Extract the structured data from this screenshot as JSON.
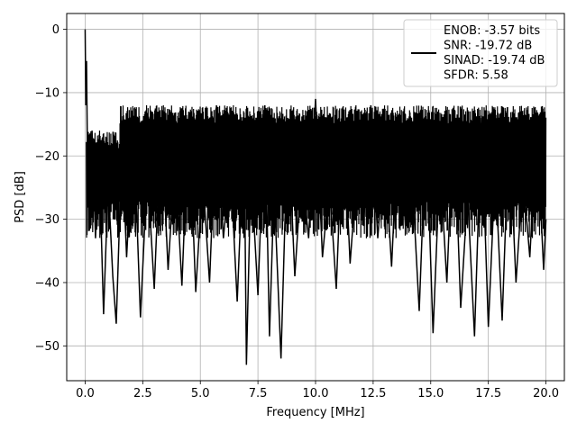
{
  "chart_data": {
    "type": "line",
    "title": "",
    "xlabel": "Frequency [MHz]",
    "ylabel": "PSD [dB]",
    "xlim": [
      -0.8,
      20.8
    ],
    "ylim": [
      -55.5,
      2.5
    ],
    "xticks": [
      0.0,
      2.5,
      5.0,
      7.5,
      10.0,
      12.5,
      15.0,
      17.5,
      20.0
    ],
    "xtick_labels": [
      "0.0",
      "2.5",
      "5.0",
      "7.5",
      "10.0",
      "12.5",
      "15.0",
      "17.5",
      "20.0"
    ],
    "yticks": [
      0,
      -10,
      -20,
      -30,
      -40,
      -50
    ],
    "ytick_labels": [
      "0",
      "−10",
      "−20",
      "−30",
      "−40",
      "−50"
    ],
    "grid": true,
    "legend_position": "top-right",
    "series": [
      {
        "name": "ENOB: -3.57 bits\nSNR: -19.72 dB\nSINAD: -19.74 dB\nSFDR: 5.58",
        "color": "#000000",
        "x": [
          0.0,
          0.03,
          0.06,
          0.1,
          0.2,
          0.3,
          0.45,
          0.6,
          0.8,
          1.0,
          1.2,
          1.35,
          1.6,
          1.8,
          2.1,
          2.4,
          2.7,
          3.0,
          3.3,
          3.6,
          3.9,
          4.2,
          4.5,
          4.8,
          5.1,
          5.4,
          5.7,
          6.0,
          6.3,
          6.6,
          6.9,
          7.0,
          7.2,
          7.5,
          7.8,
          8.0,
          8.2,
          8.5,
          8.8,
          9.1,
          9.4,
          9.7,
          10.0,
          10.3,
          10.6,
          10.9,
          11.2,
          11.5,
          11.8,
          12.1,
          12.4,
          12.7,
          13.0,
          13.3,
          13.6,
          13.9,
          14.2,
          14.5,
          14.8,
          15.1,
          15.4,
          15.7,
          16.0,
          16.3,
          16.6,
          16.9,
          17.2,
          17.5,
          17.8,
          18.1,
          18.4,
          18.7,
          19.0,
          19.3,
          19.6,
          19.9,
          20.0
        ],
        "y": [
          0.0,
          -12.0,
          -5.0,
          -20.0,
          -28.0,
          -16.0,
          -33.0,
          -19.0,
          -45.0,
          -24.0,
          -39.0,
          -46.5,
          -18.0,
          -36.0,
          -15.0,
          -45.5,
          -22.0,
          -41.0,
          -14.0,
          -38.0,
          -20.0,
          -40.5,
          -13.0,
          -41.5,
          -23.0,
          -40.0,
          -12.0,
          -33.0,
          -21.0,
          -43.0,
          -16.0,
          -53.0,
          -22.0,
          -42.0,
          -12.0,
          -48.5,
          -25.0,
          -52.0,
          -14.0,
          -39.0,
          -22.0,
          -33.0,
          -11.0,
          -36.0,
          -24.0,
          -41.0,
          -13.0,
          -37.0,
          -22.0,
          -30.0,
          -12.0,
          -33.0,
          -19.0,
          -37.5,
          -14.0,
          -31.0,
          -24.0,
          -44.5,
          -15.0,
          -48.0,
          -21.0,
          -40.0,
          -13.0,
          -44.0,
          -26.0,
          -48.5,
          -14.0,
          -47.0,
          -22.0,
          -46.0,
          -15.0,
          -40.0,
          -23.0,
          -36.0,
          -15.0,
          -38.0,
          -30.0
        ]
      }
    ],
    "legend_lines": [
      "ENOB: -3.57 bits",
      "SNR: -19.72 dB",
      "SINAD: -19.74 dB",
      "SFDR: 5.58"
    ]
  }
}
